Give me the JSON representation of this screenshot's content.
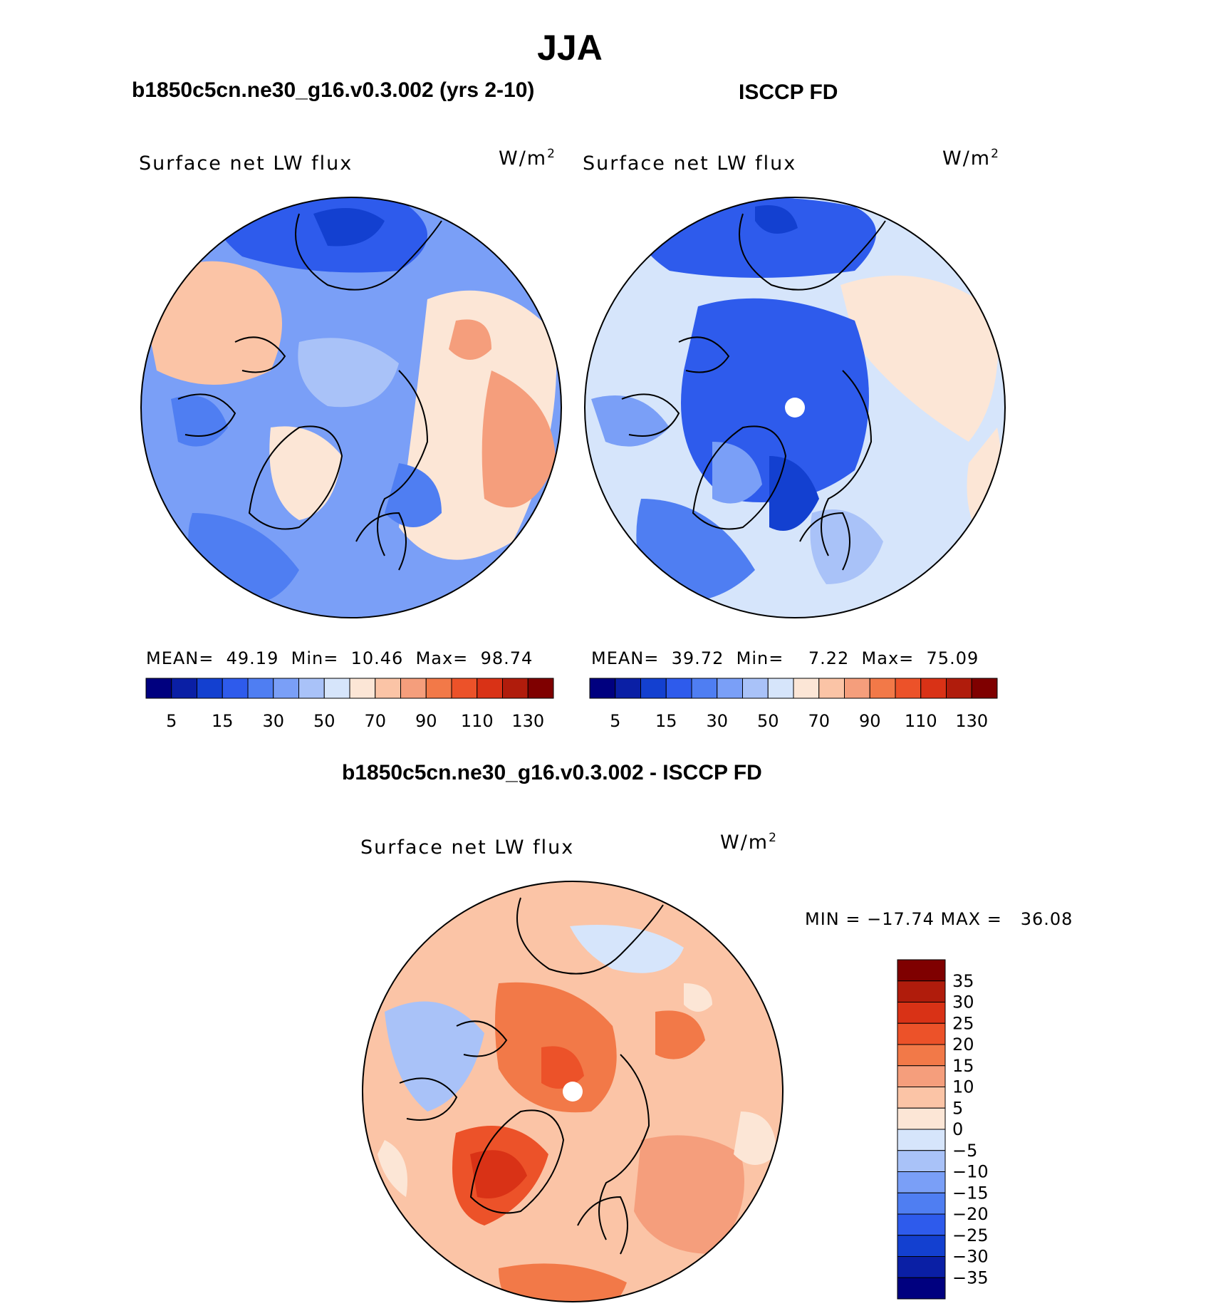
{
  "figure": {
    "season": "JJA",
    "panels": [
      {
        "title": "b1850c5cn.ne30_g16.v0.3.002 (yrs 2-10)",
        "variable": "Surface net LW flux",
        "units_base": "W/m",
        "units_exp": "2",
        "stats": {
          "mean_label": "MEAN=",
          "mean": "49.19",
          "min_label": "Min=",
          "min": "10.46",
          "max_label": "Max=",
          "max": "98.74"
        },
        "pole_mask": false
      },
      {
        "title": "ISCCP FD",
        "variable": "Surface net LW flux",
        "units_base": "W/m",
        "units_exp": "2",
        "stats": {
          "mean_label": "MEAN=",
          "mean": "39.72",
          "min_label": "Min=",
          "min": "7.22",
          "max_label": "Max=",
          "max": "75.09"
        },
        "pole_mask": true
      },
      {
        "title": "b1850c5cn.ne30_g16.v0.3.002 - ISCCP FD",
        "variable": "Surface net LW flux",
        "units_base": "W/m",
        "units_exp": "2",
        "stats_text": "MIN = −17.74 MAX =   36.08",
        "pole_mask": true
      }
    ]
  },
  "chart_data": [
    {
      "type": "heatmap",
      "title": "b1850c5cn.ne30_g16.v0.3.002 (yrs 2-10)",
      "projection": "north polar stereographic",
      "variable": "Surface net LW flux",
      "units": "W/m2",
      "mean": 49.19,
      "min": 10.46,
      "max": 98.74,
      "levels": [
        5,
        10,
        15,
        20,
        30,
        40,
        50,
        60,
        70,
        80,
        90,
        100,
        110,
        120,
        130
      ],
      "colorbar_tick_labels": [
        "5",
        "15",
        "30",
        "50",
        "70",
        "90",
        "110",
        "130"
      ],
      "colors": [
        "#00007f",
        "#0a1fa5",
        "#1340d0",
        "#2e5bec",
        "#4f7ef2",
        "#7a9ff7",
        "#a9c2f8",
        "#d6e5fb",
        "#fce6d6",
        "#fbc4a6",
        "#f59e7c",
        "#f27948",
        "#ec5229",
        "#d93216",
        "#b01c0c",
        "#7f0000"
      ]
    },
    {
      "type": "heatmap",
      "title": "ISCCP FD",
      "projection": "north polar stereographic",
      "variable": "Surface net LW flux",
      "units": "W/m2",
      "mean": 39.72,
      "min": 7.22,
      "max": 75.09,
      "levels": [
        5,
        10,
        15,
        20,
        30,
        40,
        50,
        60,
        70,
        80,
        90,
        100,
        110,
        120,
        130
      ],
      "colorbar_tick_labels": [
        "5",
        "15",
        "30",
        "50",
        "70",
        "90",
        "110",
        "130"
      ],
      "colors": [
        "#00007f",
        "#0a1fa5",
        "#1340d0",
        "#2e5bec",
        "#4f7ef2",
        "#7a9ff7",
        "#a9c2f8",
        "#d6e5fb",
        "#fce6d6",
        "#fbc4a6",
        "#f59e7c",
        "#f27948",
        "#ec5229",
        "#d93216",
        "#b01c0c",
        "#7f0000"
      ]
    },
    {
      "type": "heatmap",
      "title": "b1850c5cn.ne30_g16.v0.3.002 - ISCCP FD",
      "projection": "north polar stereographic",
      "variable": "Surface net LW flux",
      "units": "W/m2",
      "min": -17.74,
      "max": 36.08,
      "levels": [
        -35,
        -30,
        -25,
        -20,
        -15,
        -10,
        -5,
        0,
        5,
        10,
        15,
        20,
        25,
        30,
        35
      ],
      "colorbar_tick_labels": [
        "35",
        "30",
        "25",
        "20",
        "15",
        "10",
        "5",
        "0",
        "−5",
        "−10",
        "−15",
        "−20",
        "−25",
        "−30",
        "−35"
      ],
      "colors": [
        "#00007f",
        "#0a1fa5",
        "#1340d0",
        "#2e5bec",
        "#4f7ef2",
        "#7a9ff7",
        "#a9c2f8",
        "#d6e5fb",
        "#fce6d6",
        "#fbc4a6",
        "#f59e7c",
        "#f27948",
        "#ec5229",
        "#d93216",
        "#b01c0c",
        "#7f0000"
      ]
    }
  ]
}
